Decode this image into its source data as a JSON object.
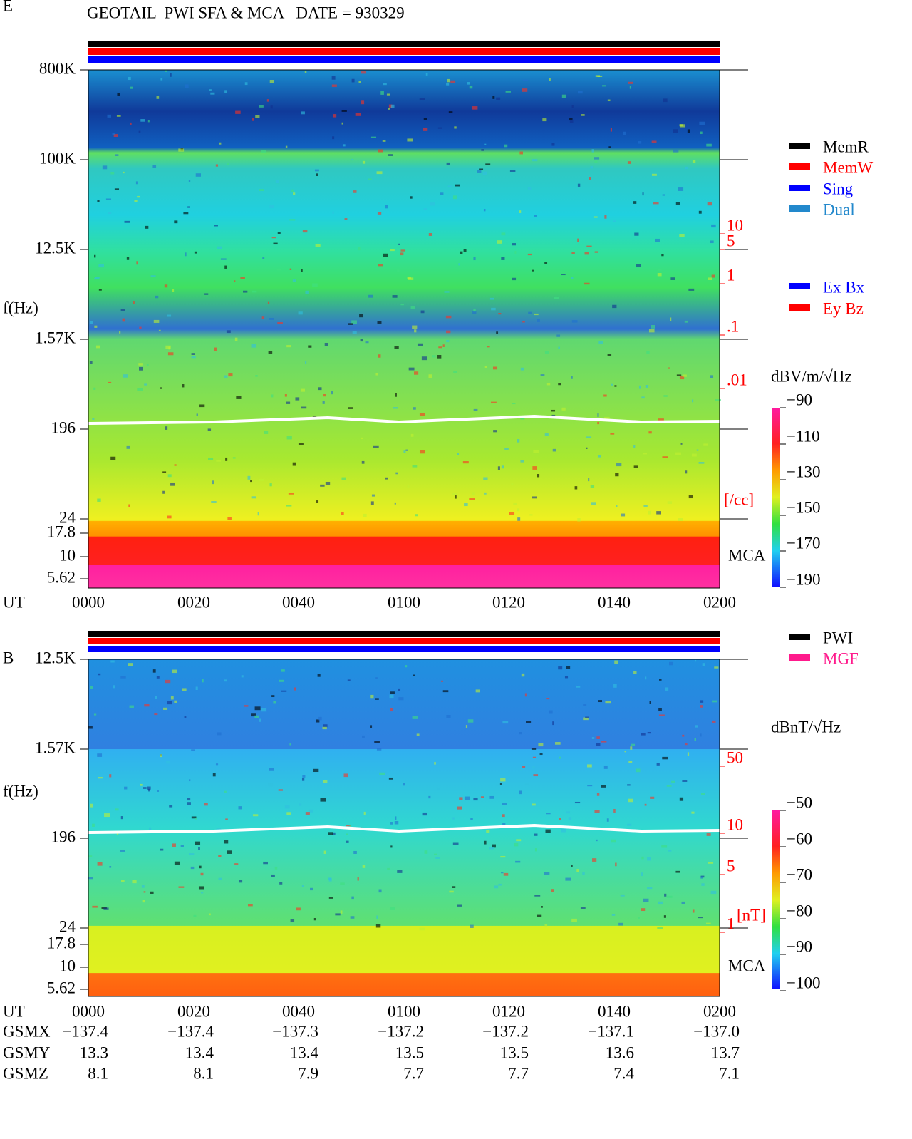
{
  "title": "GEOTAIL  PWI SFA & MCA   DATE = 930329",
  "panels": [
    {
      "component": "E",
      "axis_label": "f(Hz)",
      "frequency_labels": [
        "800K",
        "100K",
        "12.5K",
        "1.57K",
        "196",
        "24",
        "17.8",
        "10",
        "5.62"
      ],
      "density_labels": [
        "10",
        "5",
        "1",
        ".1",
        ".01"
      ],
      "density_unit": "[/cc]",
      "mca_label": "MCA",
      "colorbar": {
        "unit": "dBV/m/√Hz",
        "ticks": [
          "−90",
          "−110",
          "−130",
          "−150",
          "−170",
          "−190"
        ]
      },
      "time_axis": {
        "label": "UT",
        "ticks": [
          "0000",
          "0020",
          "0040",
          "0100",
          "0120",
          "0140",
          "0200"
        ]
      },
      "legend": [
        {
          "label": "MemR",
          "color": "#000000"
        },
        {
          "label": "MemW",
          "color": "#ff0000"
        },
        {
          "label": "Sing",
          "color": "#0000ff"
        },
        {
          "label": "Dual",
          "color": "#2288cc"
        },
        {
          "label": "Ex Bx",
          "color": "#0000ff"
        },
        {
          "label": "Ey Bz",
          "color": "#ff0000"
        }
      ]
    },
    {
      "component": "B",
      "axis_label": "f(Hz)",
      "frequency_labels": [
        "12.5K",
        "1.57K",
        "196",
        "24",
        "17.8",
        "10",
        "5.62"
      ],
      "density_labels": [
        "50",
        "10",
        "5",
        "1"
      ],
      "density_unit": "[nT]",
      "mca_label": "MCA",
      "colorbar": {
        "unit": "dBnT/√Hz",
        "ticks": [
          "−50",
          "−60",
          "−70",
          "−80",
          "−90",
          "−100"
        ]
      },
      "time_axis": {
        "label": "UT",
        "ticks": [
          "0000",
          "0020",
          "0040",
          "0100",
          "0120",
          "0140",
          "0200"
        ]
      },
      "legend": [
        {
          "label": "PWI",
          "color": "#000000"
        },
        {
          "label": "MGF",
          "color": "#ff1a8c"
        }
      ]
    }
  ],
  "ephemeris": {
    "rows": [
      {
        "label": "GSMX",
        "values": [
          "−137.4",
          "−137.4",
          "−137.3",
          "−137.2",
          "−137.2",
          "−137.1",
          "−137.0"
        ]
      },
      {
        "label": "GSMY",
        "values": [
          "13.3",
          "13.4",
          "13.4",
          "13.5",
          "13.5",
          "13.6",
          "13.7"
        ]
      },
      {
        "label": "GSMZ",
        "values": [
          "8.1",
          "8.1",
          "7.9",
          "7.7",
          "7.7",
          "7.4",
          "7.1"
        ]
      }
    ]
  }
}
